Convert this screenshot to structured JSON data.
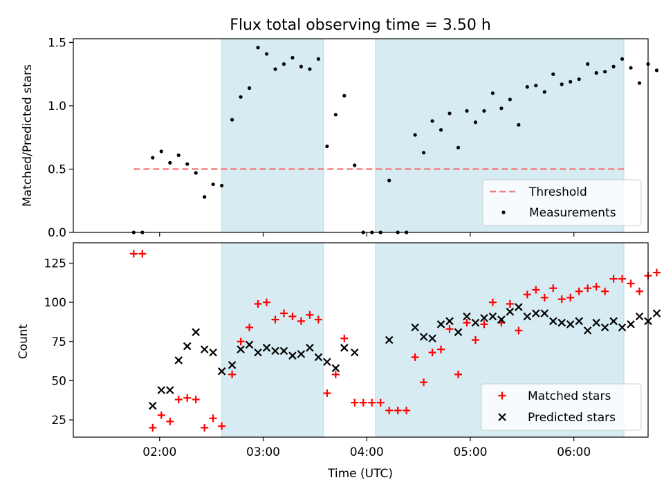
{
  "chart_data": [
    {
      "type": "scatter",
      "title": "Flux total observing time = 3.50 h",
      "xlabel": "",
      "ylabel": "Matched/Predicted stars",
      "xlim": [
        "01:10",
        "06:43"
      ],
      "ylim": [
        0.0,
        1.53
      ],
      "yticks": [
        0.0,
        0.5,
        1.0,
        1.5
      ],
      "ytick_labels": [
        "0.0",
        "0.5",
        "1.0",
        "1.5"
      ],
      "shaded_intervals": [
        [
          "02:36",
          "03:35"
        ],
        [
          "04:05",
          "06:29"
        ]
      ],
      "shaded_color": "#add8e6",
      "threshold": {
        "name": "Threshold",
        "y": 0.5,
        "x_start": "01:45",
        "x_end": "06:29",
        "color": "#f08080"
      },
      "series": [
        {
          "name": "Measurements",
          "color": "#000000",
          "points": [
            [
              "01:45",
              0.0
            ],
            [
              "01:50",
              0.0
            ],
            [
              "01:56",
              0.59
            ],
            [
              "02:01",
              0.64
            ],
            [
              "02:06",
              0.55
            ],
            [
              "02:11",
              0.61
            ],
            [
              "02:16",
              0.54
            ],
            [
              "02:21",
              0.47
            ],
            [
              "02:26",
              0.28
            ],
            [
              "02:31",
              0.38
            ],
            [
              "02:36",
              0.37
            ],
            [
              "02:42",
              0.89
            ],
            [
              "02:47",
              1.07
            ],
            [
              "02:52",
              1.14
            ],
            [
              "02:57",
              1.46
            ],
            [
              "03:02",
              1.41
            ],
            [
              "03:07",
              1.29
            ],
            [
              "03:12",
              1.33
            ],
            [
              "03:17",
              1.38
            ],
            [
              "03:22",
              1.31
            ],
            [
              "03:27",
              1.29
            ],
            [
              "03:32",
              1.37
            ],
            [
              "03:37",
              0.68
            ],
            [
              "03:42",
              0.93
            ],
            [
              "03:47",
              1.08
            ],
            [
              "03:53",
              0.53
            ],
            [
              "03:58",
              0.0
            ],
            [
              "04:03",
              0.0
            ],
            [
              "04:08",
              0.0
            ],
            [
              "04:13",
              0.41
            ],
            [
              "04:18",
              0.0
            ],
            [
              "04:23",
              0.0
            ],
            [
              "04:28",
              0.77
            ],
            [
              "04:33",
              0.63
            ],
            [
              "04:38",
              0.88
            ],
            [
              "04:43",
              0.81
            ],
            [
              "04:48",
              0.94
            ],
            [
              "04:53",
              0.67
            ],
            [
              "04:58",
              0.96
            ],
            [
              "05:03",
              0.87
            ],
            [
              "05:08",
              0.96
            ],
            [
              "05:13",
              1.1
            ],
            [
              "05:18",
              0.98
            ],
            [
              "05:23",
              1.05
            ],
            [
              "05:28",
              0.85
            ],
            [
              "05:33",
              1.15
            ],
            [
              "05:38",
              1.16
            ],
            [
              "05:43",
              1.11
            ],
            [
              "05:48",
              1.25
            ],
            [
              "05:53",
              1.17
            ],
            [
              "05:58",
              1.19
            ],
            [
              "06:03",
              1.21
            ],
            [
              "06:08",
              1.33
            ],
            [
              "06:13",
              1.26
            ],
            [
              "06:18",
              1.27
            ],
            [
              "06:23",
              1.31
            ],
            [
              "06:28",
              1.37
            ],
            [
              "06:33",
              1.3
            ],
            [
              "06:38",
              1.18
            ],
            [
              "06:43",
              1.33
            ],
            [
              "06:48",
              1.28
            ]
          ]
        }
      ],
      "legend": {
        "placement": "lower-right",
        "entries": [
          "Threshold",
          "Measurements"
        ]
      }
    },
    {
      "type": "scatter",
      "title": "",
      "xlabel": "Time (UTC)",
      "ylabel": "Count",
      "xlim": [
        "01:10",
        "06:43"
      ],
      "ylim": [
        14,
        138
      ],
      "yticks": [
        25,
        50,
        75,
        100,
        125
      ],
      "ytick_labels": [
        "25",
        "50",
        "75",
        "100",
        "125"
      ],
      "xticks": [
        "02:00",
        "03:00",
        "04:00",
        "05:00",
        "06:00"
      ],
      "xtick_labels": [
        "02:00",
        "03:00",
        "04:00",
        "05:00",
        "06:00"
      ],
      "shaded_intervals": [
        [
          "02:36",
          "03:35"
        ],
        [
          "04:05",
          "06:29"
        ]
      ],
      "shaded_color": "#add8e6",
      "series": [
        {
          "name": "Matched stars",
          "marker": "plus",
          "color": "#ff0000",
          "points": [
            [
              "01:45",
              131
            ],
            [
              "01:50",
              131
            ],
            [
              "01:56",
              20
            ],
            [
              "02:01",
              28
            ],
            [
              "02:06",
              24
            ],
            [
              "02:11",
              38
            ],
            [
              "02:16",
              39
            ],
            [
              "02:21",
              38
            ],
            [
              "02:26",
              20
            ],
            [
              "02:31",
              26
            ],
            [
              "02:36",
              21
            ],
            [
              "02:42",
              54
            ],
            [
              "02:47",
              75
            ],
            [
              "02:52",
              84
            ],
            [
              "02:57",
              99
            ],
            [
              "03:02",
              100
            ],
            [
              "03:07",
              89
            ],
            [
              "03:12",
              93
            ],
            [
              "03:17",
              91
            ],
            [
              "03:22",
              88
            ],
            [
              "03:27",
              92
            ],
            [
              "03:32",
              89
            ],
            [
              "03:37",
              42
            ],
            [
              "03:42",
              54
            ],
            [
              "03:47",
              77
            ],
            [
              "03:53",
              36
            ],
            [
              "03:58",
              36
            ],
            [
              "04:03",
              36
            ],
            [
              "04:08",
              36
            ],
            [
              "04:13",
              31
            ],
            [
              "04:18",
              31
            ],
            [
              "04:23",
              31
            ],
            [
              "04:28",
              65
            ],
            [
              "04:33",
              49
            ],
            [
              "04:38",
              68
            ],
            [
              "04:43",
              70
            ],
            [
              "04:48",
              83
            ],
            [
              "04:53",
              54
            ],
            [
              "04:58",
              87
            ],
            [
              "05:03",
              76
            ],
            [
              "05:08",
              86
            ],
            [
              "05:13",
              100
            ],
            [
              "05:18",
              87
            ],
            [
              "05:23",
              99
            ],
            [
              "05:28",
              82
            ],
            [
              "05:33",
              105
            ],
            [
              "05:38",
              108
            ],
            [
              "05:43",
              103
            ],
            [
              "05:48",
              109
            ],
            [
              "05:53",
              102
            ],
            [
              "05:58",
              103
            ],
            [
              "06:03",
              107
            ],
            [
              "06:08",
              109
            ],
            [
              "06:13",
              110
            ],
            [
              "06:18",
              107
            ],
            [
              "06:23",
              115
            ],
            [
              "06:28",
              115
            ],
            [
              "06:33",
              112
            ],
            [
              "06:38",
              107
            ],
            [
              "06:43",
              117
            ],
            [
              "06:48",
              119
            ]
          ]
        },
        {
          "name": "Predicted stars",
          "marker": "x",
          "color": "#000000",
          "points": [
            [
              "01:56",
              34
            ],
            [
              "02:01",
              44
            ],
            [
              "02:06",
              44
            ],
            [
              "02:11",
              63
            ],
            [
              "02:16",
              72
            ],
            [
              "02:21",
              81
            ],
            [
              "02:26",
              70
            ],
            [
              "02:31",
              68
            ],
            [
              "02:36",
              56
            ],
            [
              "02:42",
              60
            ],
            [
              "02:47",
              70
            ],
            [
              "02:52",
              73
            ],
            [
              "02:57",
              68
            ],
            [
              "03:02",
              71
            ],
            [
              "03:07",
              69
            ],
            [
              "03:12",
              69
            ],
            [
              "03:17",
              66
            ],
            [
              "03:22",
              67
            ],
            [
              "03:27",
              71
            ],
            [
              "03:32",
              65
            ],
            [
              "03:37",
              62
            ],
            [
              "03:42",
              58
            ],
            [
              "03:47",
              71
            ],
            [
              "03:53",
              68
            ],
            [
              "04:13",
              76
            ],
            [
              "04:28",
              84
            ],
            [
              "04:33",
              78
            ],
            [
              "04:38",
              77
            ],
            [
              "04:43",
              86
            ],
            [
              "04:48",
              88
            ],
            [
              "04:53",
              81
            ],
            [
              "04:58",
              91
            ],
            [
              "05:03",
              87
            ],
            [
              "05:08",
              90
            ],
            [
              "05:13",
              91
            ],
            [
              "05:18",
              89
            ],
            [
              "05:23",
              94
            ],
            [
              "05:28",
              97
            ],
            [
              "05:33",
              91
            ],
            [
              "05:38",
              93
            ],
            [
              "05:43",
              93
            ],
            [
              "05:48",
              88
            ],
            [
              "05:53",
              87
            ],
            [
              "05:58",
              86
            ],
            [
              "06:03",
              88
            ],
            [
              "06:08",
              82
            ],
            [
              "06:13",
              87
            ],
            [
              "06:18",
              84
            ],
            [
              "06:23",
              88
            ],
            [
              "06:28",
              84
            ],
            [
              "06:33",
              86
            ],
            [
              "06:38",
              91
            ],
            [
              "06:43",
              88
            ],
            [
              "06:48",
              93
            ]
          ]
        }
      ],
      "legend": {
        "placement": "lower-right",
        "entries": [
          "Matched stars",
          "Predicted stars"
        ]
      }
    }
  ]
}
